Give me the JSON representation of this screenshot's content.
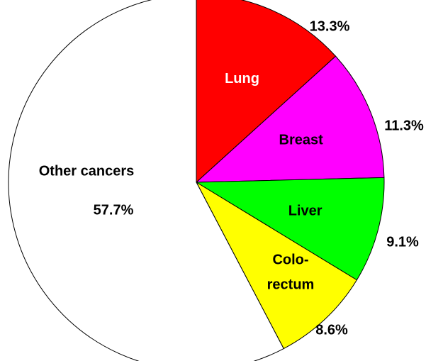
{
  "chart_data": {
    "type": "pie",
    "categories": [
      "Lung",
      "Breast",
      "Liver",
      "Colo-\nrectum",
      "Other cancers"
    ],
    "values": [
      13.3,
      11.3,
      9.1,
      8.6,
      57.7
    ],
    "value_labels": [
      "13.3%",
      "11.3%",
      "9.1%",
      "8.6%",
      "57.7%"
    ],
    "colors": [
      "#ff0000",
      "#ff00ff",
      "#00ff00",
      "#ffff00",
      "#ffffff"
    ],
    "start_angle": 0,
    "direction": "clockwise"
  }
}
